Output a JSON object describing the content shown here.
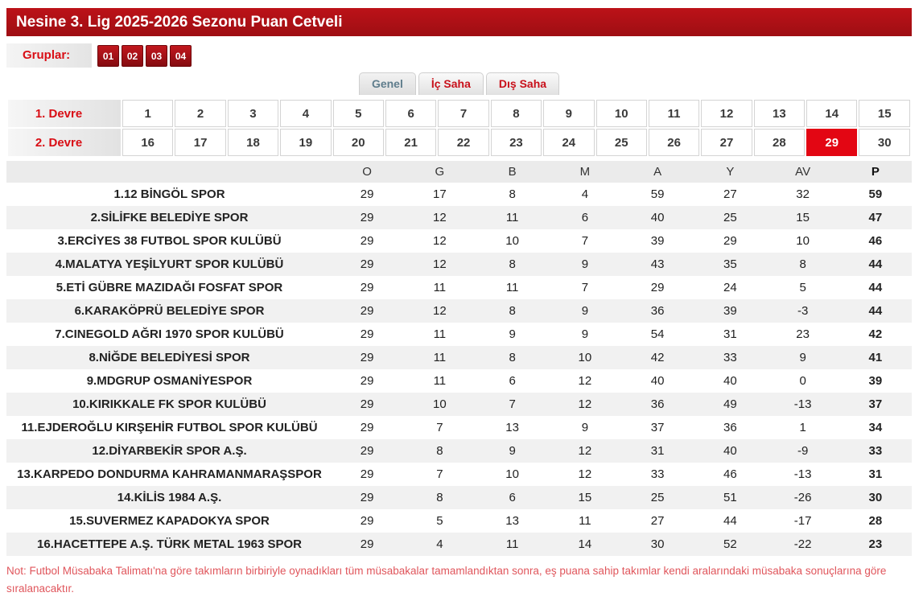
{
  "header": {
    "title": "Nesine 3. Lig 2025-2026 Sezonu Puan Cetveli"
  },
  "groups": {
    "label": "Gruplar:",
    "items": [
      "01",
      "02",
      "03",
      "04"
    ]
  },
  "tabs": [
    {
      "label": "Genel",
      "active": true
    },
    {
      "label": "İç Saha",
      "active": false
    },
    {
      "label": "Dış Saha",
      "active": false
    }
  ],
  "weeks": {
    "round1_label": "1. Devre",
    "round2_label": "2. Devre",
    "round1": [
      1,
      2,
      3,
      4,
      5,
      6,
      7,
      8,
      9,
      10,
      11,
      12,
      13,
      14,
      15
    ],
    "round2": [
      16,
      17,
      18,
      19,
      20,
      21,
      22,
      23,
      24,
      25,
      26,
      27,
      28,
      29,
      30
    ],
    "selected_week": 29
  },
  "standings": {
    "columns": [
      "O",
      "G",
      "B",
      "M",
      "A",
      "Y",
      "AV",
      "P"
    ],
    "rows": [
      {
        "rank": 1,
        "team": "12 BİNGÖL SPOR",
        "o": 29,
        "g": 17,
        "b": 8,
        "m": 4,
        "a": 59,
        "y": 27,
        "av": 32,
        "p": 59
      },
      {
        "rank": 2,
        "team": "SİLİFKE BELEDİYE SPOR",
        "o": 29,
        "g": 12,
        "b": 11,
        "m": 6,
        "a": 40,
        "y": 25,
        "av": 15,
        "p": 47
      },
      {
        "rank": 3,
        "team": "ERCİYES 38 FUTBOL SPOR KULÜBÜ",
        "o": 29,
        "g": 12,
        "b": 10,
        "m": 7,
        "a": 39,
        "y": 29,
        "av": 10,
        "p": 46
      },
      {
        "rank": 4,
        "team": "MALATYA YEŞİLYURT SPOR KULÜBÜ",
        "o": 29,
        "g": 12,
        "b": 8,
        "m": 9,
        "a": 43,
        "y": 35,
        "av": 8,
        "p": 44
      },
      {
        "rank": 5,
        "team": "ETİ GÜBRE MAZIDAĞI FOSFAT SPOR",
        "o": 29,
        "g": 11,
        "b": 11,
        "m": 7,
        "a": 29,
        "y": 24,
        "av": 5,
        "p": 44
      },
      {
        "rank": 6,
        "team": "KARAKÖPRÜ BELEDİYE SPOR",
        "o": 29,
        "g": 12,
        "b": 8,
        "m": 9,
        "a": 36,
        "y": 39,
        "av": -3,
        "p": 44
      },
      {
        "rank": 7,
        "team": "CINEGOLD AĞRI 1970 SPOR KULÜBÜ",
        "o": 29,
        "g": 11,
        "b": 9,
        "m": 9,
        "a": 54,
        "y": 31,
        "av": 23,
        "p": 42
      },
      {
        "rank": 8,
        "team": "NİĞDE BELEDİYESİ SPOR",
        "o": 29,
        "g": 11,
        "b": 8,
        "m": 10,
        "a": 42,
        "y": 33,
        "av": 9,
        "p": 41
      },
      {
        "rank": 9,
        "team": "MDGRUP OSMANİYESPOR",
        "o": 29,
        "g": 11,
        "b": 6,
        "m": 12,
        "a": 40,
        "y": 40,
        "av": 0,
        "p": 39
      },
      {
        "rank": 10,
        "team": "KIRIKKALE FK SPOR KULÜBÜ",
        "o": 29,
        "g": 10,
        "b": 7,
        "m": 12,
        "a": 36,
        "y": 49,
        "av": -13,
        "p": 37
      },
      {
        "rank": 11,
        "team": "EJDEROĞLU KIRŞEHİR FUTBOL SPOR KULÜBÜ",
        "o": 29,
        "g": 7,
        "b": 13,
        "m": 9,
        "a": 37,
        "y": 36,
        "av": 1,
        "p": 34
      },
      {
        "rank": 12,
        "team": "DİYARBEKİR SPOR A.Ş.",
        "o": 29,
        "g": 8,
        "b": 9,
        "m": 12,
        "a": 31,
        "y": 40,
        "av": -9,
        "p": 33
      },
      {
        "rank": 13,
        "team": "KARPEDO DONDURMA KAHRAMANMARAŞSPOR",
        "o": 29,
        "g": 7,
        "b": 10,
        "m": 12,
        "a": 33,
        "y": 46,
        "av": -13,
        "p": 31
      },
      {
        "rank": 14,
        "team": "KİLİS 1984 A.Ş.",
        "o": 29,
        "g": 8,
        "b": 6,
        "m": 15,
        "a": 25,
        "y": 51,
        "av": -26,
        "p": 30
      },
      {
        "rank": 15,
        "team": "SUVERMEZ KAPADOKYA SPOR",
        "o": 29,
        "g": 5,
        "b": 13,
        "m": 11,
        "a": 27,
        "y": 44,
        "av": -17,
        "p": 28
      },
      {
        "rank": 16,
        "team": "HACETTEPE A.Ş. TÜRK METAL 1963 SPOR",
        "o": 29,
        "g": 4,
        "b": 11,
        "m": 14,
        "a": 30,
        "y": 52,
        "av": -22,
        "p": 23
      }
    ]
  },
  "note": "Not: Futbol Müsabaka Talimatı'na göre takımların birbiriyle oynadıkları tüm müsabakalar tamamlandıktan sonra, eş puana sahip takımlar kendi aralarındaki müsabaka sonuçlarına göre sıralanacaktır.",
  "colors": {
    "accent_red": "#e30613",
    "title_bar_red": "#b01217",
    "team_name_red": "#a8121a",
    "note_red": "#e0565c"
  }
}
